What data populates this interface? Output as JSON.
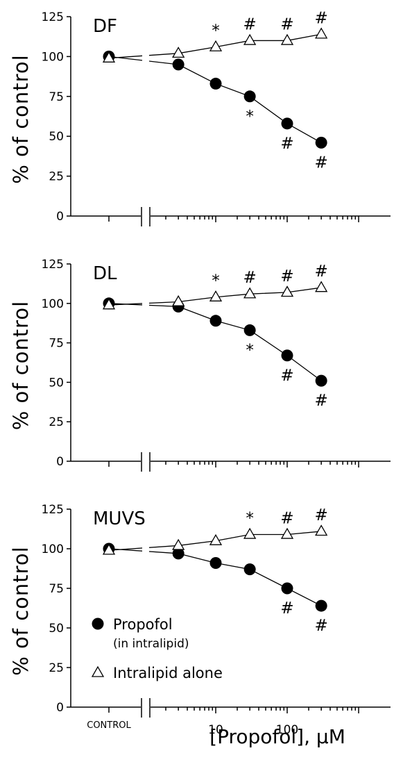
{
  "chart_data": [
    {
      "type": "line",
      "title": "DF",
      "ylabel": "% of control",
      "xlabel": "",
      "control_label": "",
      "ylim": [
        0,
        125
      ],
      "yticks": [
        "0",
        "25",
        "50",
        "75",
        "100",
        "125"
      ],
      "xticks": [],
      "x_scale": "log",
      "x": [
        3,
        10,
        30,
        100,
        300
      ],
      "series": [
        {
          "name": "",
          "marker": "filled-circle",
          "control": 100,
          "values": [
            95,
            83,
            75,
            58,
            46
          ],
          "sig": [
            "",
            "",
            "*",
            "#",
            "#"
          ],
          "sig_pos": [
            "",
            "",
            "below",
            "below",
            "below"
          ]
        },
        {
          "name": "",
          "marker": "open-triangle",
          "control": 99,
          "values": [
            102,
            106,
            110,
            110,
            114
          ],
          "sig": [
            "",
            "*",
            "#",
            "#",
            "#"
          ],
          "sig_pos": [
            "",
            "above",
            "above",
            "above",
            "above"
          ]
        }
      ]
    },
    {
      "type": "line",
      "title": "DL",
      "ylabel": "% of control",
      "xlabel": "",
      "control_label": "",
      "ylim": [
        0,
        125
      ],
      "yticks": [
        "0",
        "25",
        "50",
        "75",
        "100",
        "125"
      ],
      "xticks": [],
      "x_scale": "log",
      "x": [
        3,
        10,
        30,
        100,
        300
      ],
      "series": [
        {
          "name": "",
          "marker": "filled-circle",
          "control": 100,
          "values": [
            98,
            89,
            83,
            67,
            51
          ],
          "sig": [
            "",
            "",
            "*",
            "#",
            "#"
          ],
          "sig_pos": [
            "",
            "",
            "below",
            "below",
            "below"
          ]
        },
        {
          "name": "",
          "marker": "open-triangle",
          "control": 99,
          "values": [
            101,
            104,
            106,
            107,
            110
          ],
          "sig": [
            "",
            "*",
            "#",
            "#",
            "#"
          ],
          "sig_pos": [
            "",
            "above",
            "above",
            "above",
            "above"
          ]
        }
      ]
    },
    {
      "type": "line",
      "title": "MUVS",
      "ylabel": "% of control",
      "xlabel": "[Propofol], μM",
      "control_label": "CONTROL",
      "ylim": [
        0,
        125
      ],
      "yticks": [
        "0",
        "25",
        "50",
        "75",
        "100",
        "125"
      ],
      "xticks": [
        "10",
        "100"
      ],
      "x_scale": "log",
      "x": [
        3,
        10,
        30,
        100,
        300
      ],
      "legend": {
        "position": "bottom-left"
      },
      "series": [
        {
          "name": "Propofol",
          "name_sub": "(in intralipid)",
          "marker": "filled-circle",
          "control": 100,
          "values": [
            97,
            91,
            87,
            75,
            64
          ],
          "sig": [
            "",
            "",
            "",
            "#",
            "#"
          ],
          "sig_pos": [
            "",
            "",
            "",
            "below",
            "below"
          ]
        },
        {
          "name": "Intralipid alone",
          "marker": "open-triangle",
          "control": 99,
          "values": [
            102,
            105,
            109,
            109,
            111
          ],
          "sig": [
            "",
            "",
            "*",
            "#",
            "#"
          ],
          "sig_pos": [
            "",
            "",
            "above",
            "above",
            "above"
          ]
        }
      ]
    }
  ]
}
